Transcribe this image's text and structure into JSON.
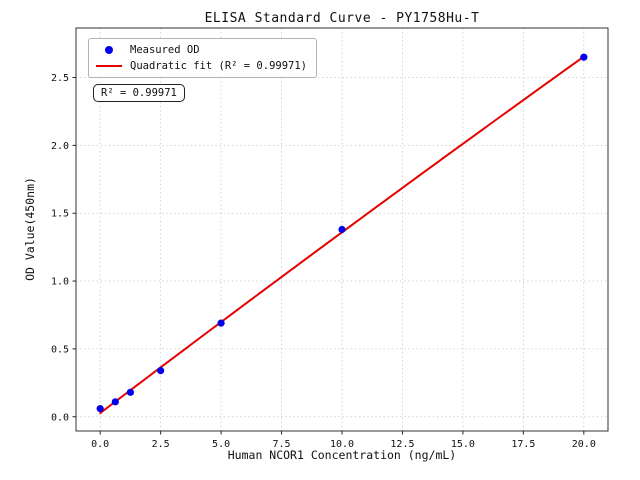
{
  "annotation": {
    "r_squared_label": "R² = 0.99971"
  },
  "chart_data": {
    "type": "scatter",
    "title": "ELISA Standard Curve - PY1758Hu-T",
    "xlabel": "Human NCOR1 Concentration (ng/mL)",
    "ylabel": "OD Value(450nm)",
    "x": [
      0,
      0.625,
      1.25,
      2.5,
      5,
      10,
      20
    ],
    "y": [
      0.06,
      0.11,
      0.18,
      0.34,
      0.69,
      1.38,
      2.65
    ],
    "series": [
      {
        "name": "Measured OD",
        "kind": "scatter",
        "color": "#0000ee",
        "marker": "circle"
      },
      {
        "name": "Quadratic fit (R² = 0.99971)",
        "kind": "line",
        "color": "#e60000",
        "fit": "quadratic",
        "r_squared": 0.99971
      }
    ],
    "x_ticks": {
      "values": [
        0,
        2.5,
        5,
        7.5,
        10,
        12.5,
        15,
        17.5,
        20
      ],
      "labels": [
        "0.0",
        "2.5",
        "5.0",
        "7.5",
        "10.0",
        "12.5",
        "15.0",
        "17.5",
        "20.0"
      ]
    },
    "y_ticks": {
      "values": [
        0,
        0.5,
        1,
        1.5,
        2,
        2.5
      ],
      "labels": [
        "0.0",
        "0.5",
        "1.0",
        "1.5",
        "2.0",
        "2.5"
      ]
    },
    "xlim": [
      -1,
      21
    ],
    "ylim": [
      -0.105,
      2.865
    ],
    "grid": true,
    "grid_style": "dotted",
    "grid_color": "#c9c9c9",
    "legend_position": "upper left",
    "background": "#ffffff"
  }
}
